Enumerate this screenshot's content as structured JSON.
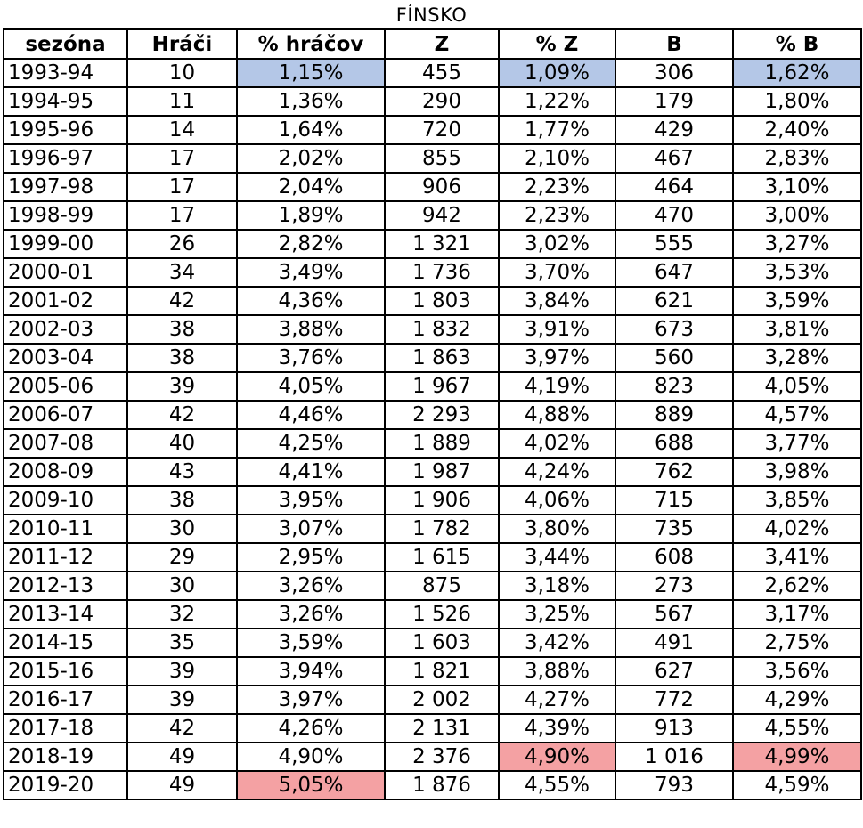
{
  "chart_data": {
    "type": "table",
    "title": "FÍNSKO",
    "columns": [
      "sezóna",
      "Hráči",
      "% hráčov",
      "Z",
      "% Z",
      "B",
      "% B"
    ],
    "rows": [
      [
        "1993-94",
        "10",
        "1,15%",
        "455",
        "1,09%",
        "306",
        "1,62%"
      ],
      [
        "1994-95",
        "11",
        "1,36%",
        "290",
        "1,22%",
        "179",
        "1,80%"
      ],
      [
        "1995-96",
        "14",
        "1,64%",
        "720",
        "1,77%",
        "429",
        "2,40%"
      ],
      [
        "1996-97",
        "17",
        "2,02%",
        "855",
        "2,10%",
        "467",
        "2,83%"
      ],
      [
        "1997-98",
        "17",
        "2,04%",
        "906",
        "2,23%",
        "464",
        "3,10%"
      ],
      [
        "1998-99",
        "17",
        "1,89%",
        "942",
        "2,23%",
        "470",
        "3,00%"
      ],
      [
        "1999-00",
        "26",
        "2,82%",
        "1 321",
        "3,02%",
        "555",
        "3,27%"
      ],
      [
        "2000-01",
        "34",
        "3,49%",
        "1 736",
        "3,70%",
        "647",
        "3,53%"
      ],
      [
        "2001-02",
        "42",
        "4,36%",
        "1 803",
        "3,84%",
        "621",
        "3,59%"
      ],
      [
        "2002-03",
        "38",
        "3,88%",
        "1 832",
        "3,91%",
        "673",
        "3,81%"
      ],
      [
        "2003-04",
        "38",
        "3,76%",
        "1 863",
        "3,97%",
        "560",
        "3,28%"
      ],
      [
        "2005-06",
        "39",
        "4,05%",
        "1 967",
        "4,19%",
        "823",
        "4,05%"
      ],
      [
        "2006-07",
        "42",
        "4,46%",
        "2 293",
        "4,88%",
        "889",
        "4,57%"
      ],
      [
        "2007-08",
        "40",
        "4,25%",
        "1 889",
        "4,02%",
        "688",
        "3,77%"
      ],
      [
        "2008-09",
        "43",
        "4,41%",
        "1 987",
        "4,24%",
        "762",
        "3,98%"
      ],
      [
        "2009-10",
        "38",
        "3,95%",
        "1 906",
        "4,06%",
        "715",
        "3,85%"
      ],
      [
        "2010-11",
        "30",
        "3,07%",
        "1 782",
        "3,80%",
        "735",
        "4,02%"
      ],
      [
        "2011-12",
        "29",
        "2,95%",
        "1 615",
        "3,44%",
        "608",
        "3,41%"
      ],
      [
        "2012-13",
        "30",
        "3,26%",
        "875",
        "3,18%",
        "273",
        "2,62%"
      ],
      [
        "2013-14",
        "32",
        "3,26%",
        "1 526",
        "3,25%",
        "567",
        "3,17%"
      ],
      [
        "2014-15",
        "35",
        "3,59%",
        "1 603",
        "3,42%",
        "491",
        "2,75%"
      ],
      [
        "2015-16",
        "39",
        "3,94%",
        "1 821",
        "3,88%",
        "627",
        "3,56%"
      ],
      [
        "2016-17",
        "39",
        "3,97%",
        "2 002",
        "4,27%",
        "772",
        "4,29%"
      ],
      [
        "2017-18",
        "42",
        "4,26%",
        "2 131",
        "4,39%",
        "913",
        "4,55%"
      ],
      [
        "2018-19",
        "49",
        "4,90%",
        "2 376",
        "4,90%",
        "1 016",
        "4,99%"
      ],
      [
        "2019-20",
        "49",
        "5,05%",
        "1 876",
        "4,55%",
        "793",
        "4,59%"
      ]
    ],
    "highlights": {
      "min_color": "#b4c7e7",
      "max_color": "#f4a1a3",
      "min_cells": [
        {
          "row": "1993-94",
          "column": "% hráčov"
        },
        {
          "row": "1993-94",
          "column": "% Z"
        },
        {
          "row": "1993-94",
          "column": "% B"
        }
      ],
      "max_cells": [
        {
          "row": "2019-20",
          "column": "% hráčov"
        },
        {
          "row": "2018-19",
          "column": "% Z"
        },
        {
          "row": "2018-19",
          "column": "% B"
        }
      ]
    }
  }
}
